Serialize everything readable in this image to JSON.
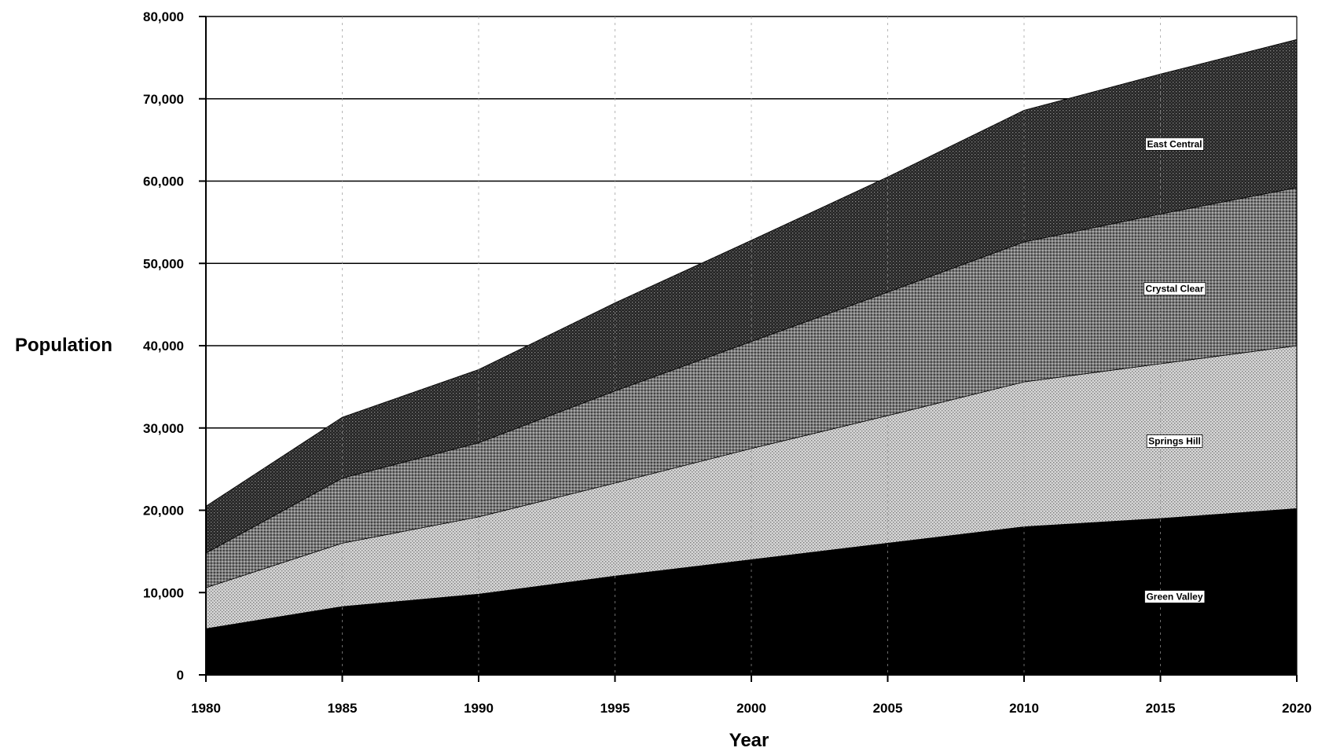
{
  "chart_data": {
    "type": "area",
    "stacked": true,
    "title": "",
    "xlabel": "Year",
    "ylabel": "Population",
    "x": [
      1980,
      1985,
      1990,
      1995,
      2000,
      2005,
      2010,
      2015,
      2020
    ],
    "xlim": [
      1980,
      2020
    ],
    "ylim": [
      0,
      80000
    ],
    "x_ticks": [
      "1980",
      "1985",
      "1990",
      "1995",
      "2000",
      "2005",
      "2010",
      "2015",
      "2020"
    ],
    "y_ticks": [
      "0",
      "10,000",
      "20,000",
      "30,000",
      "40,000",
      "50,000",
      "60,000",
      "70,000",
      "80,000"
    ],
    "grid": {
      "horizontal": "solid",
      "vertical": "dashed"
    },
    "series": [
      {
        "name": "Green Valley",
        "values": [
          5600,
          8300,
          9800,
          12000,
          14000,
          16000,
          18000,
          19000,
          20200
        ],
        "fill": "#000000"
      },
      {
        "name": "Springs Hill",
        "values": [
          5000,
          7700,
          9400,
          11300,
          13500,
          15500,
          17600,
          18800,
          19800
        ],
        "fill": "#c8c8c8"
      },
      {
        "name": "Crystal Clear",
        "values": [
          4200,
          7900,
          9000,
          11200,
          13000,
          15000,
          17000,
          18200,
          19200
        ],
        "fill": "#6e6e6e"
      },
      {
        "name": "East Central",
        "values": [
          5700,
          7400,
          8900,
          10700,
          12300,
          14000,
          16000,
          17000,
          18000
        ],
        "fill": "#2e2e2e"
      }
    ]
  }
}
